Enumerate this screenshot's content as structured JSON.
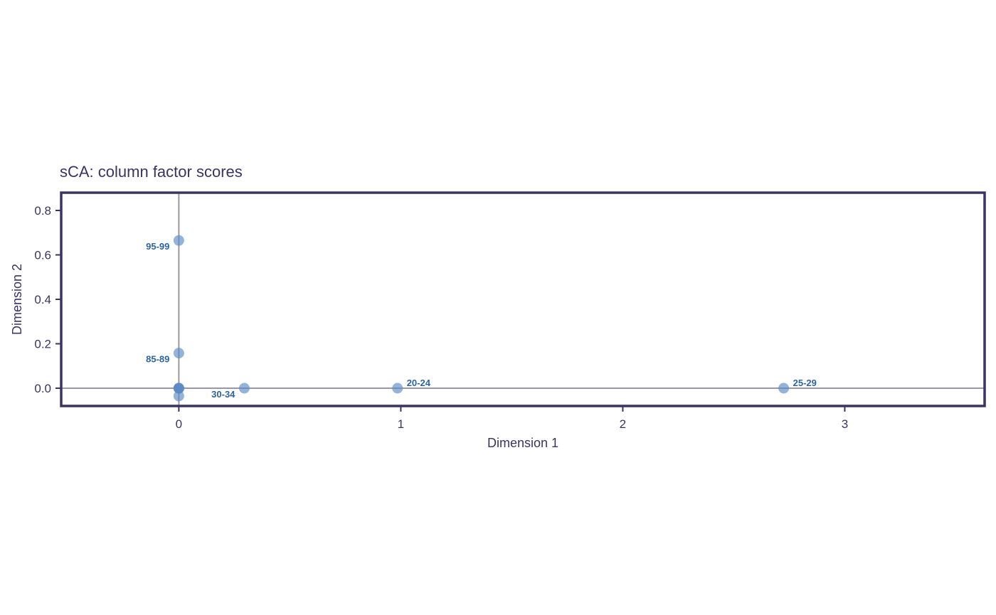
{
  "colors": {
    "frame": "#3b3364",
    "text": "#3b3364",
    "reference_line": "#9a98a8",
    "point": "#5b8ac4",
    "point_dense": "#2564a8",
    "label": "#2c64a0"
  },
  "chart_data": {
    "type": "scatter",
    "title": "sCA: column factor scores",
    "xlabel": "Dimension 1",
    "ylabel": "Dimension 2",
    "xlim": [
      -0.53,
      3.63
    ],
    "ylim": [
      -0.08,
      0.88
    ],
    "xticks": [
      0,
      1,
      2,
      3
    ],
    "yticks": [
      0.0,
      0.2,
      0.4,
      0.6,
      0.8
    ],
    "ytick_labels": [
      "0.0",
      "0.2",
      "0.4",
      "0.6",
      "0.8"
    ],
    "grid": false,
    "reference_lines": {
      "x": 0,
      "y": 0
    },
    "points": [
      {
        "x": 0.0,
        "y": 0.665,
        "label": "95-99"
      },
      {
        "x": 0.0,
        "y": 0.158,
        "label": "85-89"
      },
      {
        "x": 0.0,
        "y": 0.0,
        "label": ""
      },
      {
        "x": 0.0,
        "y": 0.0,
        "label": ""
      },
      {
        "x": 0.0,
        "y": 0.0,
        "label": ""
      },
      {
        "x": 0.0,
        "y": 0.0,
        "label": ""
      },
      {
        "x": 0.0,
        "y": -0.035,
        "label": ""
      },
      {
        "x": 0.295,
        "y": 0.0,
        "label": "30-34"
      },
      {
        "x": 0.985,
        "y": 0.0,
        "label": "20-24"
      },
      {
        "x": 2.725,
        "y": 0.0,
        "label": "25-29"
      }
    ]
  }
}
